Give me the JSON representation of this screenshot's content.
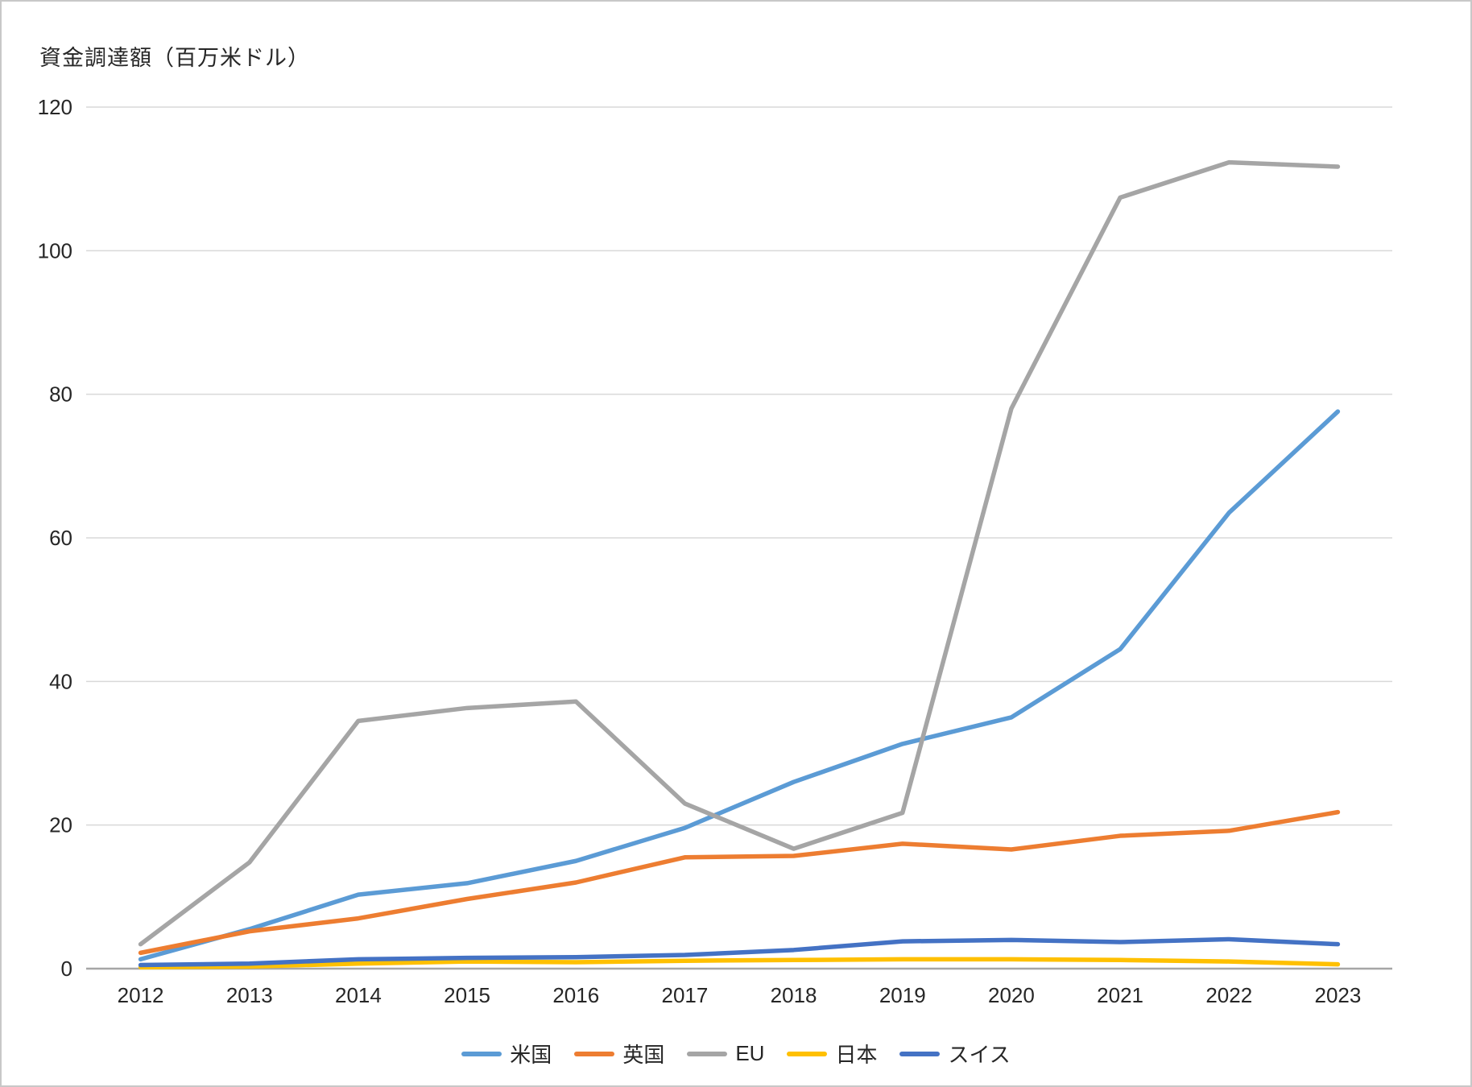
{
  "title": "資金調達額（百万米ドル）",
  "chart_data": {
    "type": "line",
    "title": "資金調達額（百万米ドル）",
    "categories": [
      "2012",
      "2013",
      "2014",
      "2015",
      "2016",
      "2017",
      "2018",
      "2019",
      "2020",
      "2021",
      "2022",
      "2023"
    ],
    "series": [
      {
        "id": "us",
        "name": "米国",
        "color": "#5B9BD5",
        "values": [
          1.3,
          5.5,
          10.3,
          11.9,
          15.0,
          19.6,
          26.0,
          31.3,
          35.0,
          44.5,
          63.5,
          77.6
        ]
      },
      {
        "id": "uk",
        "name": "英国",
        "color": "#ED7D31",
        "values": [
          2.2,
          5.2,
          7.0,
          9.7,
          12.0,
          15.5,
          15.7,
          17.4,
          16.6,
          18.5,
          19.2,
          21.8
        ]
      },
      {
        "id": "eu",
        "name": "EU",
        "color": "#A5A5A5",
        "values": [
          3.4,
          14.8,
          34.5,
          36.3,
          37.2,
          23.0,
          16.7,
          21.7,
          78.0,
          107.4,
          112.3,
          111.7
        ]
      },
      {
        "id": "japan",
        "name": "日本",
        "color": "#FFC000",
        "values": [
          0.2,
          0.3,
          0.7,
          1.0,
          0.9,
          1.1,
          1.2,
          1.3,
          1.3,
          1.2,
          1.0,
          0.6
        ]
      },
      {
        "id": "switzerland",
        "name": "スイス",
        "color": "#4472C4",
        "values": [
          0.5,
          0.7,
          1.3,
          1.5,
          1.6,
          1.9,
          2.6,
          3.8,
          4.0,
          3.7,
          4.1,
          3.4
        ]
      }
    ],
    "xlabel": "",
    "ylabel": "",
    "ylim": [
      0,
      120
    ],
    "yticks": [
      0,
      20,
      40,
      60,
      80,
      100,
      120
    ],
    "grid": true,
    "legend_position": "bottom",
    "gridline_color": "#D9D9D9",
    "axis_line_color": "#A6A6A6",
    "tick_label_color": "#262626"
  }
}
